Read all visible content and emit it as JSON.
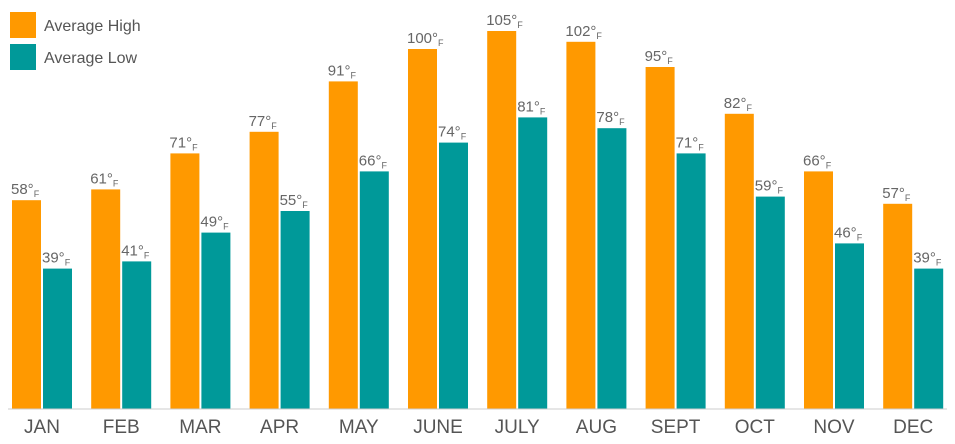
{
  "chart_data": {
    "type": "bar",
    "categories": [
      "JAN",
      "FEB",
      "MAR",
      "APR",
      "MAY",
      "JUNE",
      "JULY",
      "AUG",
      "SEPT",
      "OCT",
      "NOV",
      "DEC"
    ],
    "series": [
      {
        "name": "Average High",
        "color": "#FF9900",
        "values": [
          58,
          61,
          71,
          77,
          91,
          100,
          105,
          102,
          95,
          82,
          66,
          57
        ]
      },
      {
        "name": "Average Low",
        "color": "#009999",
        "values": [
          39,
          41,
          49,
          55,
          66,
          74,
          81,
          78,
          71,
          59,
          46,
          39
        ]
      }
    ],
    "value_suffix": "°",
    "value_unit": "F",
    "ylim": [
      0,
      110
    ],
    "grid": false,
    "legend_position": "top-left",
    "axis_color": "#cccccc"
  }
}
